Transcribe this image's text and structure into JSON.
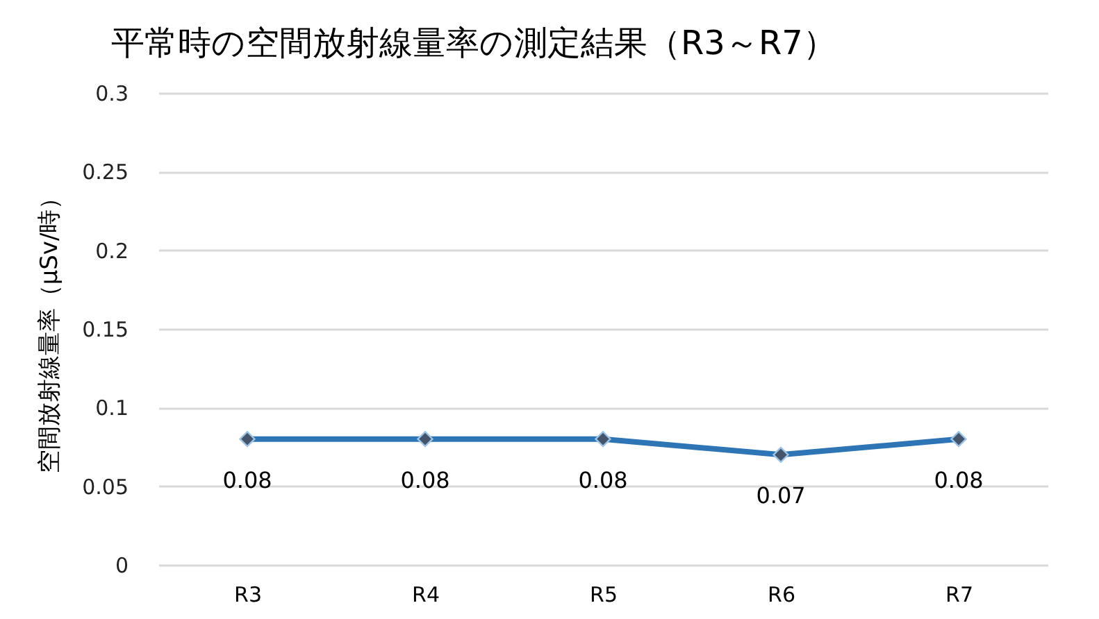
{
  "chart_data": {
    "type": "line",
    "title": "平常時の空間放射線量率の測定結果（R3～R7）",
    "ylabel": "空間放射線量率（μSv/時）",
    "categories": [
      "R3",
      "R4",
      "R5",
      "R6",
      "R7"
    ],
    "series": [
      {
        "color": "#2e75b6",
        "values": [
          0.08,
          0.08,
          0.08,
          0.07,
          0.08
        ]
      }
    ],
    "ylim": [
      0,
      0.3
    ],
    "yticks": [
      0,
      0.05,
      0.1,
      0.15,
      0.2,
      0.25,
      0.3
    ],
    "grid": "y",
    "marker": "diamond",
    "line_style": "solid",
    "data_labels": true,
    "legend": false
  }
}
